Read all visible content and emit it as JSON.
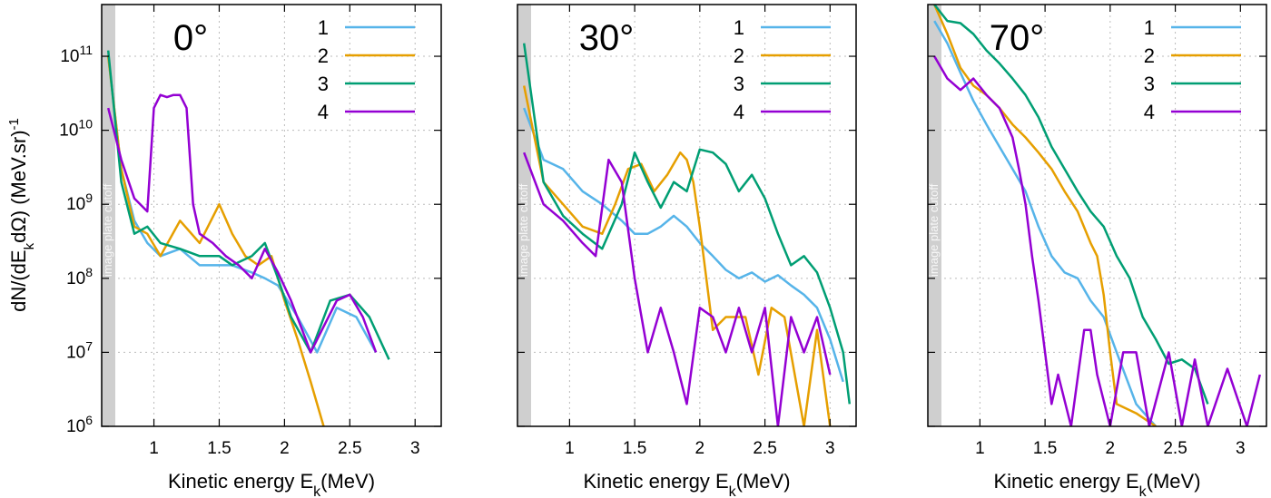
{
  "chart_data": [
    {
      "type": "line",
      "title": "0°",
      "xlabel": "Kinetic energy E_k(MeV)",
      "ylabel": "dN/(dE_k dΩ) (MeV.sr)^-1",
      "xlim": [
        0.6,
        3.2
      ],
      "ylim": [
        1000000.0,
        500000000000.0
      ],
      "yscale": "log",
      "grid": true,
      "legend": "top-right",
      "x_ticks": [
        "1",
        "1.5",
        "2",
        "2.5",
        "3"
      ],
      "cutoff_label": "image plate cutoff",
      "series": [
        {
          "name": "1",
          "color": "#56b4e9",
          "x": [
            0.65,
            0.75,
            0.85,
            0.95,
            1.05,
            1.2,
            1.35,
            1.5,
            1.6,
            1.75,
            1.85,
            1.95,
            2.1,
            2.25,
            2.4,
            2.55,
            2.7
          ],
          "y": [
            100000000000.0,
            3000000000.0,
            600000000.0,
            300000000.0,
            200000000.0,
            250000000.0,
            150000000.0,
            150000000.0,
            150000000.0,
            120000000.0,
            100000000.0,
            80000000.0,
            30000000.0,
            10000000.0,
            40000000.0,
            30000000.0,
            10000000.0
          ]
        },
        {
          "name": "2",
          "color": "#e69f00",
          "x": [
            0.65,
            0.75,
            0.85,
            0.95,
            1.05,
            1.2,
            1.35,
            1.5,
            1.6,
            1.7,
            1.8,
            1.9,
            2.0,
            2.1,
            2.2,
            2.3
          ],
          "y": [
            100000000000.0,
            3000000000.0,
            500000000.0,
            400000000.0,
            200000000.0,
            600000000.0,
            300000000.0,
            1000000000.0,
            400000000.0,
            200000000.0,
            150000000.0,
            200000000.0,
            50000000.0,
            15000000.0,
            4000000.0,
            1000000.0
          ]
        },
        {
          "name": "3",
          "color": "#009e73",
          "x": [
            0.65,
            0.75,
            0.85,
            0.95,
            1.05,
            1.2,
            1.35,
            1.5,
            1.6,
            1.75,
            1.85,
            1.95,
            2.05,
            2.2,
            2.35,
            2.5,
            2.65,
            2.8
          ],
          "y": [
            120000000000.0,
            2000000000.0,
            400000000.0,
            500000000.0,
            300000000.0,
            250000000.0,
            200000000.0,
            200000000.0,
            150000000.0,
            200000000.0,
            300000000.0,
            100000000.0,
            30000000.0,
            10000000.0,
            50000000.0,
            60000000.0,
            30000000.0,
            8000000.0
          ]
        },
        {
          "name": "4",
          "color": "#9400d3",
          "x": [
            0.65,
            0.75,
            0.85,
            0.95,
            1.0,
            1.05,
            1.1,
            1.15,
            1.2,
            1.25,
            1.3,
            1.35,
            1.45,
            1.55,
            1.65,
            1.75,
            1.85,
            1.95,
            2.05,
            2.2,
            2.4,
            2.5,
            2.6,
            2.7
          ],
          "y": [
            20000000000.0,
            4000000000.0,
            1200000000.0,
            800000000.0,
            20000000000.0,
            30000000000.0,
            28000000000.0,
            30000000000.0,
            30000000000.0,
            20000000000.0,
            1000000000.0,
            400000000.0,
            300000000.0,
            200000000.0,
            150000000.0,
            100000000.0,
            250000000.0,
            120000000.0,
            50000000.0,
            10000000.0,
            50000000.0,
            60000000.0,
            30000000.0,
            10000000.0
          ]
        }
      ]
    },
    {
      "type": "line",
      "title": "30°",
      "xlabel": "Kinetic energy E_k(MeV)",
      "ylabel": "",
      "xlim": [
        0.6,
        3.2
      ],
      "ylim": [
        1000000.0,
        500000000000.0
      ],
      "yscale": "log",
      "grid": true,
      "legend": "top-right",
      "x_ticks": [
        "1",
        "1.5",
        "2",
        "2.5",
        "3"
      ],
      "cutoff_label": "image plate cutoff",
      "series": [
        {
          "name": "1",
          "color": "#56b4e9",
          "x": [
            0.65,
            0.8,
            0.95,
            1.1,
            1.25,
            1.4,
            1.5,
            1.6,
            1.7,
            1.8,
            1.9,
            2.0,
            2.1,
            2.2,
            2.3,
            2.4,
            2.5,
            2.6,
            2.7,
            2.8,
            2.9,
            3.0,
            3.1
          ],
          "y": [
            20000000000.0,
            4000000000.0,
            3000000000.0,
            1500000000.0,
            1000000000.0,
            600000000.0,
            400000000.0,
            400000000.0,
            500000000.0,
            700000000.0,
            500000000.0,
            300000000.0,
            200000000.0,
            130000000.0,
            100000000.0,
            120000000.0,
            90000000.0,
            110000000.0,
            80000000.0,
            60000000.0,
            40000000.0,
            15000000.0,
            4000000.0
          ]
        },
        {
          "name": "2",
          "color": "#e69f00",
          "x": [
            0.65,
            0.8,
            0.95,
            1.1,
            1.25,
            1.35,
            1.45,
            1.55,
            1.65,
            1.75,
            1.85,
            1.9,
            1.95,
            2.0,
            2.05,
            2.1,
            2.2,
            2.35,
            2.45,
            2.55,
            2.65,
            2.8,
            2.9,
            3.0
          ],
          "y": [
            40000000000.0,
            2000000000.0,
            1000000000.0,
            500000000.0,
            400000000.0,
            1000000000.0,
            3000000000.0,
            3500000000.0,
            1500000000.0,
            2500000000.0,
            5000000000.0,
            4000000000.0,
            2000000000.0,
            500000000.0,
            100000000.0,
            20000000.0,
            30000000.0,
            30000000.0,
            5000000.0,
            40000000.0,
            30000000.0,
            1000000.0,
            20000000.0,
            1000000.0
          ]
        },
        {
          "name": "3",
          "color": "#009e73",
          "x": [
            0.65,
            0.8,
            0.95,
            1.1,
            1.25,
            1.4,
            1.5,
            1.6,
            1.7,
            1.8,
            1.9,
            2.0,
            2.1,
            2.2,
            2.3,
            2.4,
            2.5,
            2.6,
            2.7,
            2.8,
            2.9,
            3.0,
            3.1,
            3.15
          ],
          "y": [
            150000000000.0,
            2000000000.0,
            700000000.0,
            400000000.0,
            250000000.0,
            1000000000.0,
            5000000000.0,
            2000000000.0,
            900000000.0,
            2000000000.0,
            1500000000.0,
            5500000000.0,
            5000000000.0,
            3500000000.0,
            1500000000.0,
            2500000000.0,
            1200000000.0,
            400000000.0,
            150000000.0,
            200000000.0,
            120000000.0,
            40000000.0,
            10000000.0,
            2000000.0
          ]
        },
        {
          "name": "4",
          "color": "#9400d3",
          "x": [
            0.65,
            0.8,
            0.95,
            1.1,
            1.2,
            1.3,
            1.4,
            1.5,
            1.6,
            1.7,
            1.8,
            1.9,
            2.0,
            2.1,
            2.2,
            2.3,
            2.4,
            2.5,
            2.6,
            2.7,
            2.8,
            2.9,
            3.0
          ],
          "y": [
            5000000000.0,
            1000000000.0,
            600000000.0,
            300000000.0,
            200000000.0,
            4000000000.0,
            2000000000.0,
            100000000.0,
            10000000.0,
            40000000.0,
            10000000.0,
            2000000.0,
            40000000.0,
            30000000.0,
            10000000.0,
            40000000.0,
            10000000.0,
            40000000.0,
            1000000.0,
            30000000.0,
            10000000.0,
            30000000.0,
            5000000.0
          ]
        }
      ]
    },
    {
      "type": "line",
      "title": "70°",
      "xlabel": "Kinetic energy E_k(MeV)",
      "ylabel": "",
      "xlim": [
        0.6,
        3.2
      ],
      "ylim": [
        1000000.0,
        500000000000.0
      ],
      "yscale": "log",
      "grid": true,
      "legend": "top-right",
      "x_ticks": [
        "1",
        "1.5",
        "2",
        "2.5",
        "3"
      ],
      "cutoff_label": "image plate cutoff",
      "series": [
        {
          "name": "1",
          "color": "#56b4e9",
          "x": [
            0.65,
            0.75,
            0.85,
            0.95,
            1.05,
            1.15,
            1.25,
            1.35,
            1.45,
            1.55,
            1.65,
            1.75,
            1.85,
            1.95,
            2.05,
            2.2,
            2.35
          ],
          "y": [
            300000000000.0,
            150000000000.0,
            60000000000.0,
            25000000000.0,
            12000000000.0,
            6000000000.0,
            3000000000.0,
            1500000000.0,
            500000000.0,
            200000000.0,
            120000000.0,
            100000000.0,
            50000000.0,
            30000000.0,
            10000000.0,
            2000000.0,
            1000000.0
          ]
        },
        {
          "name": "2",
          "color": "#e69f00",
          "x": [
            0.65,
            0.75,
            0.85,
            0.95,
            1.05,
            1.15,
            1.25,
            1.35,
            1.45,
            1.55,
            1.65,
            1.75,
            1.85,
            1.9,
            1.95,
            2.0,
            2.05,
            2.2,
            2.35
          ],
          "y": [
            500000000000.0,
            200000000000.0,
            70000000000.0,
            40000000000.0,
            30000000000.0,
            20000000000.0,
            12000000000.0,
            8000000000.0,
            5000000000.0,
            3000000000.0,
            1500000000.0,
            800000000.0,
            300000000.0,
            200000000.0,
            60000000.0,
            10000000.0,
            2000000.0,
            1500000.0,
            1000000.0
          ]
        },
        {
          "name": "3",
          "color": "#009e73",
          "x": [
            0.65,
            0.75,
            0.85,
            0.95,
            1.05,
            1.15,
            1.25,
            1.35,
            1.45,
            1.55,
            1.65,
            1.75,
            1.85,
            1.95,
            2.05,
            2.15,
            2.25,
            2.35,
            2.45,
            2.55,
            2.65,
            2.75
          ],
          "y": [
            500000000000.0,
            300000000000.0,
            280000000000.0,
            200000000000.0,
            120000000000.0,
            80000000000.0,
            50000000000.0,
            30000000000.0,
            15000000000.0,
            6000000000.0,
            3000000000.0,
            1500000000.0,
            800000000.0,
            500000000.0,
            200000000.0,
            100000000.0,
            30000000.0,
            15000000.0,
            7000000.0,
            8000000.0,
            6000000.0,
            2000000.0
          ]
        },
        {
          "name": "4",
          "color": "#9400d3",
          "x": [
            0.65,
            0.75,
            0.85,
            0.95,
            1.05,
            1.15,
            1.25,
            1.3,
            1.35,
            1.4,
            1.45,
            1.5,
            1.55,
            1.6,
            1.7,
            1.8,
            1.85,
            1.9,
            2.0,
            2.1,
            2.2,
            2.3,
            2.45,
            2.55,
            2.65,
            2.75,
            2.9,
            3.05,
            3.15
          ],
          "y": [
            100000000000.0,
            50000000000.0,
            35000000000.0,
            50000000000.0,
            30000000000.0,
            20000000000.0,
            8000000000.0,
            3000000000.0,
            1000000000.0,
            200000000.0,
            50000000.0,
            10000000.0,
            2000000.0,
            5000000.0,
            1000000.0,
            20000000.0,
            20000000.0,
            5000000.0,
            1000000.0,
            10000000.0,
            10000000.0,
            1000000.0,
            10000000.0,
            1000000.0,
            8000000.0,
            1000000.0,
            6000000.0,
            1000000.0,
            5000000.0
          ]
        }
      ]
    }
  ]
}
